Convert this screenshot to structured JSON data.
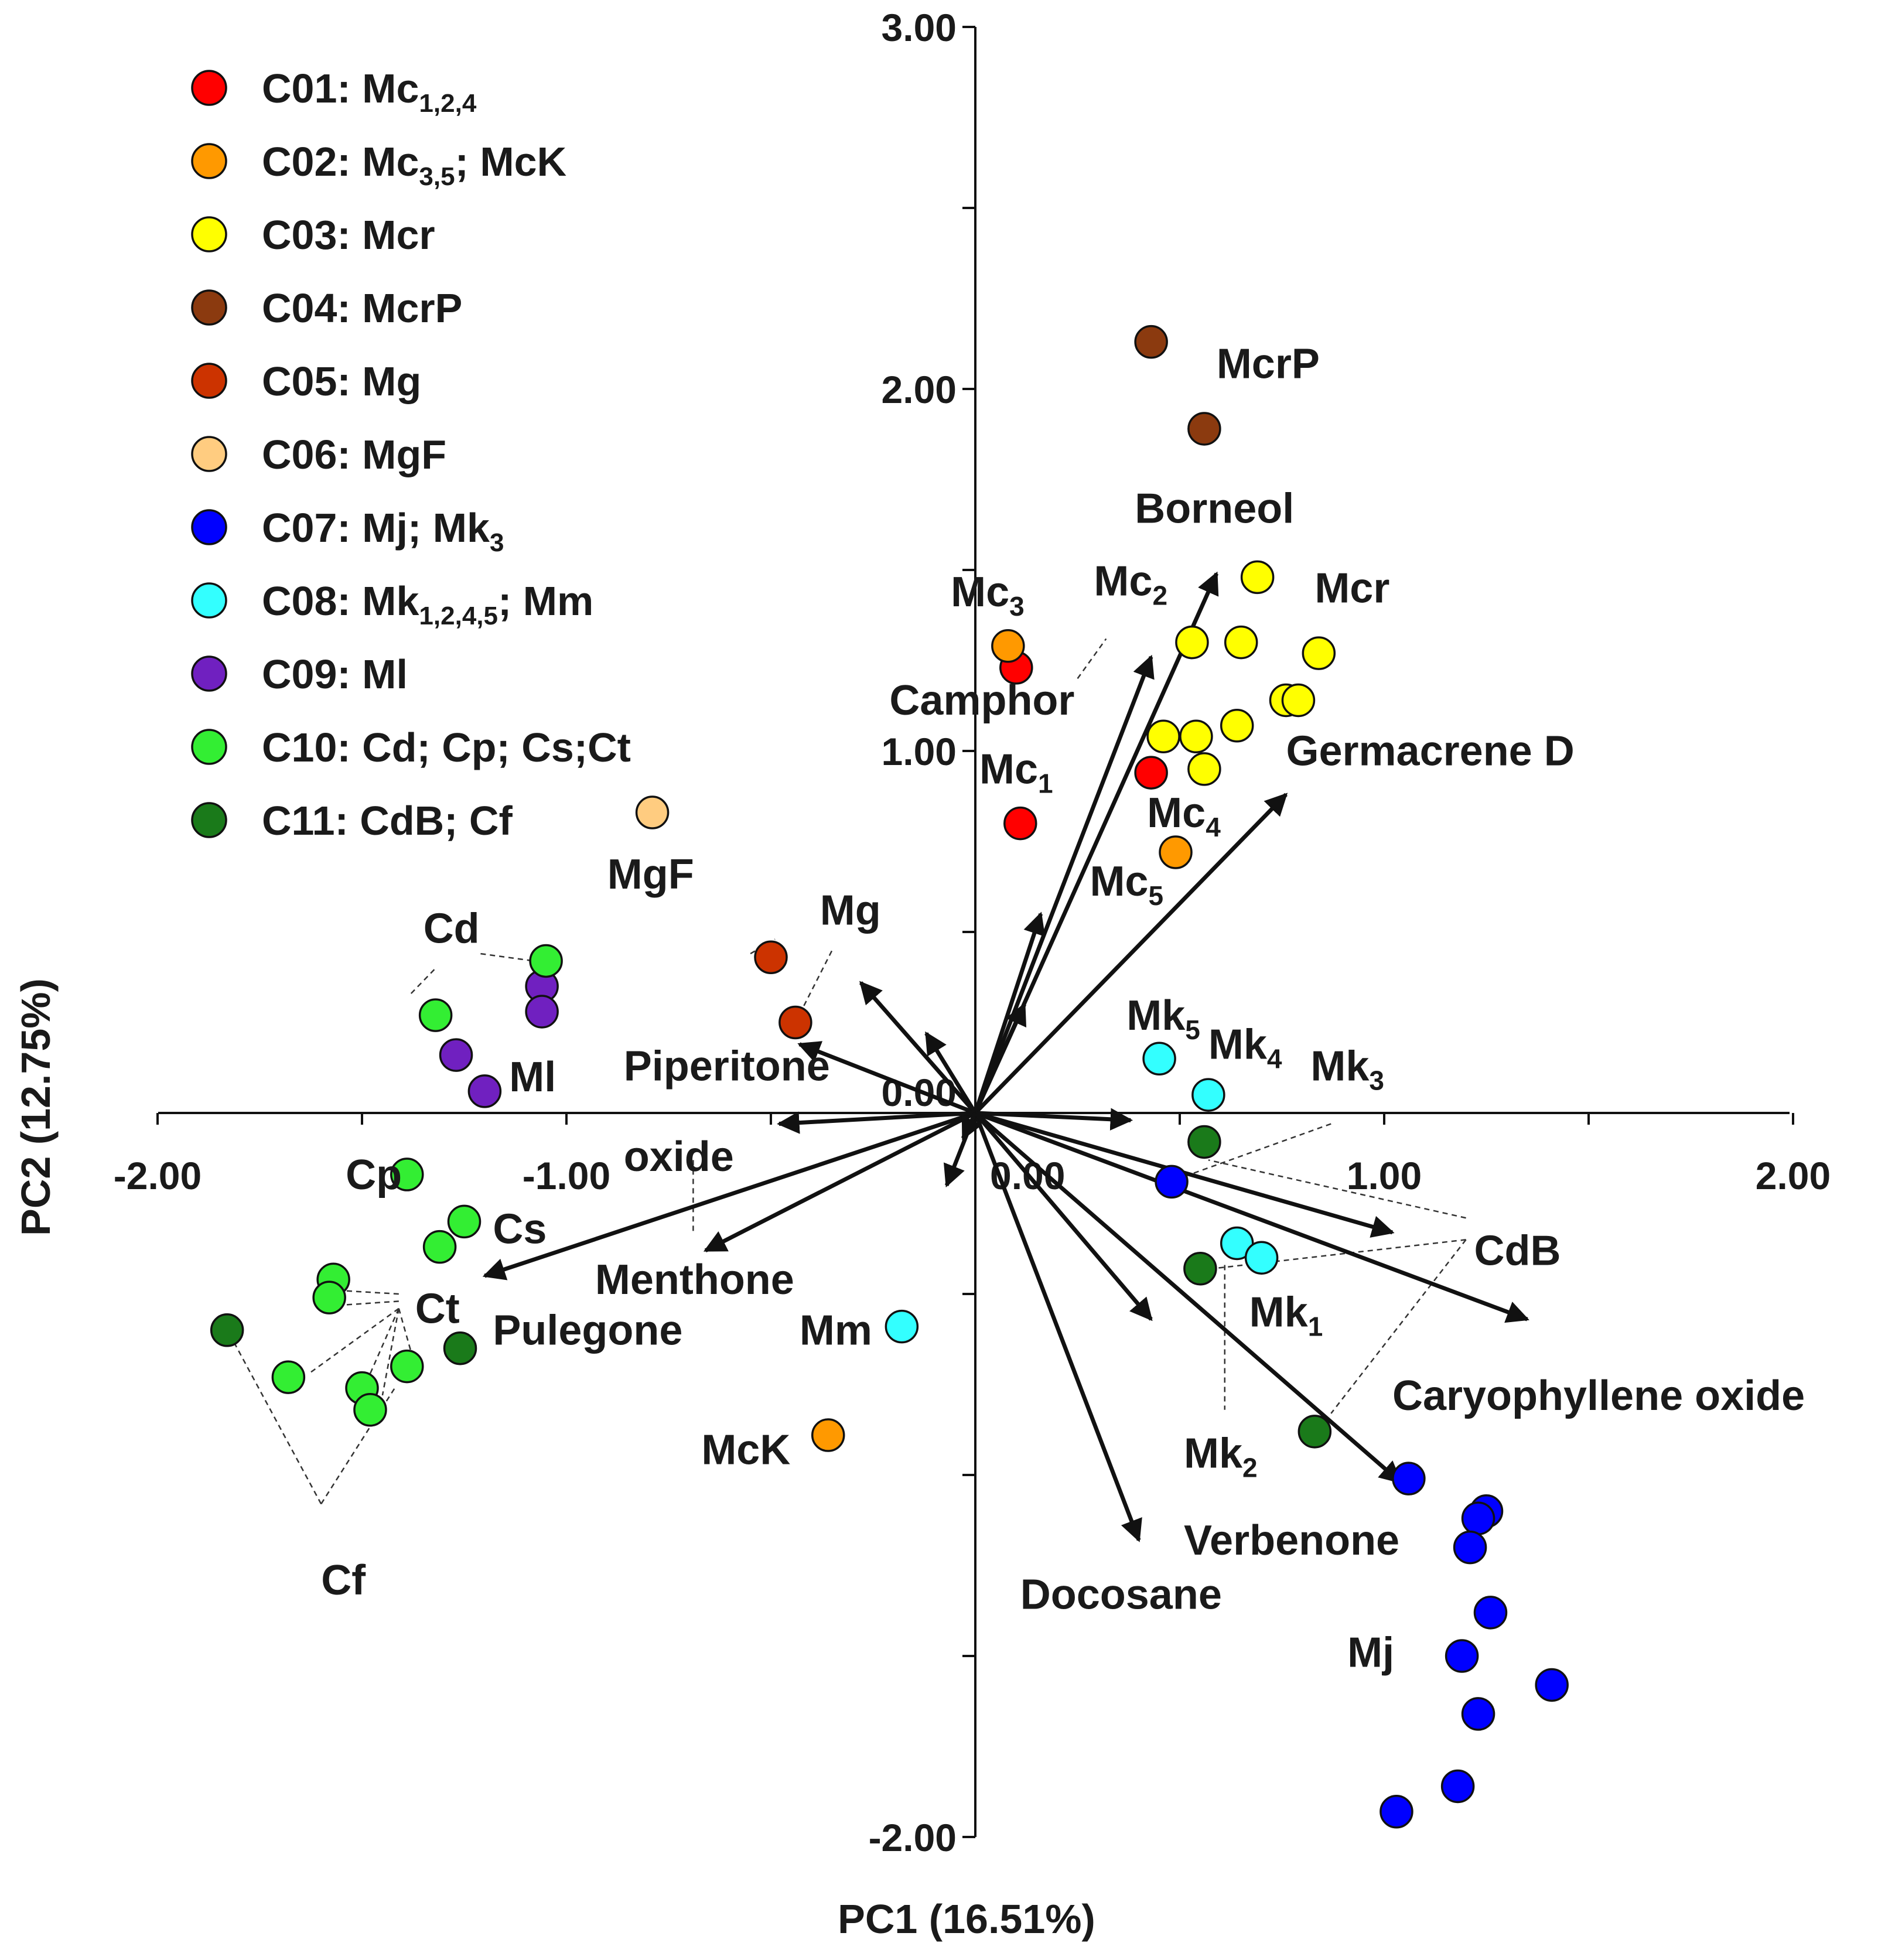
{
  "chart_data": {
    "type": "scatter",
    "subtype": "pca-biplot",
    "xlabel": "PC1 (16.51%)",
    "ylabel": "PC2 (12.75%)",
    "xlim": [
      -2.0,
      2.0
    ],
    "ylim": [
      -2.0,
      3.0
    ],
    "x_ticks": [
      "-2.00",
      "-1.00",
      "0.00",
      "1.00",
      "2.00"
    ],
    "y_ticks": [
      "-2.00",
      "0.00",
      "1.00",
      "2.00",
      "3.00"
    ],
    "grid": false,
    "legend_position": "top-left",
    "clusters": [
      {
        "id": "C01",
        "color": "#ff0000",
        "label": [
          [
            "C01: Mc",
            ""
          ],
          [
            "1,2,4",
            "sub"
          ]
        ],
        "points": [
          [
            0.1,
            1.23
          ],
          [
            0.43,
            0.94
          ],
          [
            0.11,
            0.8
          ]
        ]
      },
      {
        "id": "C02",
        "color": "#ff9900",
        "label": [
          [
            "C02: Mc",
            ""
          ],
          [
            "3,5",
            "sub"
          ],
          [
            "; McK",
            ""
          ]
        ],
        "points": [
          [
            0.08,
            1.29
          ],
          [
            0.49,
            0.72
          ],
          [
            -0.36,
            -0.89
          ]
        ]
      },
      {
        "id": "C03",
        "color": "#ffff00",
        "label": [
          [
            "C03: Mcr",
            ""
          ]
        ],
        "points": [
          [
            0.69,
            1.48
          ],
          [
            0.53,
            1.3
          ],
          [
            0.65,
            1.3
          ],
          [
            0.84,
            1.27
          ],
          [
            0.76,
            1.14
          ],
          [
            0.79,
            1.14
          ],
          [
            0.46,
            1.04
          ],
          [
            0.54,
            1.04
          ],
          [
            0.64,
            1.07
          ],
          [
            0.56,
            0.95
          ]
        ]
      },
      {
        "id": "C04",
        "color": "#8b3a0f",
        "label": [
          [
            "C04: McrP",
            ""
          ]
        ],
        "points": [
          [
            0.43,
            2.13
          ],
          [
            0.56,
            1.89
          ]
        ]
      },
      {
        "id": "C05",
        "color": "#cc3300",
        "label": [
          [
            "C05: Mg",
            ""
          ]
        ],
        "points": [
          [
            -0.5,
            0.43
          ],
          [
            -0.44,
            0.25
          ]
        ]
      },
      {
        "id": "C06",
        "color": "#ffcc80",
        "label": [
          [
            "C06: MgF",
            ""
          ]
        ],
        "points": [
          [
            -0.79,
            0.83
          ]
        ]
      },
      {
        "id": "C07",
        "color": "#0000ff",
        "label": [
          [
            "C07: Mj; Mk",
            ""
          ],
          [
            "3",
            "sub"
          ]
        ],
        "points": [
          [
            0.48,
            -0.19
          ],
          [
            1.06,
            -1.01
          ],
          [
            1.25,
            -1.1
          ],
          [
            1.23,
            -1.12
          ],
          [
            1.21,
            -1.2
          ],
          [
            1.26,
            -1.38
          ],
          [
            1.41,
            -1.58
          ],
          [
            1.19,
            -1.5
          ],
          [
            1.23,
            -1.66
          ],
          [
            1.18,
            -1.86
          ],
          [
            1.03,
            -1.93
          ]
        ]
      },
      {
        "id": "C08",
        "color": "#33ffff",
        "label": [
          [
            "C08: Mk",
            ""
          ],
          [
            "1,2,4,5",
            "sub"
          ],
          [
            "; Mm",
            ""
          ]
        ],
        "points": [
          [
            0.45,
            0.15
          ],
          [
            0.57,
            0.05
          ],
          [
            0.64,
            -0.36
          ],
          [
            0.7,
            -0.4
          ],
          [
            -0.18,
            -0.59
          ]
        ]
      },
      {
        "id": "C09",
        "color": "#7020c0",
        "label": [
          [
            "C09: Ml",
            ""
          ]
        ],
        "points": [
          [
            -1.06,
            0.35
          ],
          [
            -1.06,
            0.28
          ],
          [
            -1.27,
            0.16
          ],
          [
            -1.2,
            0.06
          ]
        ]
      },
      {
        "id": "C10",
        "color": "#33ee33",
        "label": [
          [
            "C10: Cd; Cp; Cs;Ct",
            ""
          ]
        ],
        "points": [
          [
            -1.05,
            0.42
          ],
          [
            -1.32,
            0.27
          ],
          [
            -1.39,
            -0.17
          ],
          [
            -1.25,
            -0.3
          ],
          [
            -1.31,
            -0.37
          ],
          [
            -1.57,
            -0.46
          ],
          [
            -1.58,
            -0.51
          ],
          [
            -1.39,
            -0.7
          ],
          [
            -1.68,
            -0.73
          ],
          [
            -1.5,
            -0.76
          ],
          [
            -1.48,
            -0.82
          ]
        ]
      },
      {
        "id": "C11",
        "color": "#1a7a1a",
        "label": [
          [
            "C11: CdB; Cf",
            ""
          ]
        ],
        "points": [
          [
            0.56,
            -0.08
          ],
          [
            0.55,
            -0.43
          ],
          [
            0.83,
            -0.88
          ],
          [
            -1.26,
            -0.65
          ],
          [
            -1.83,
            -0.6
          ]
        ]
      }
    ],
    "loadings": [
      {
        "name": "Borneol",
        "x": 0.59,
        "y": 1.49
      },
      {
        "name": "Camphor",
        "x": 0.43,
        "y": 1.26
      },
      {
        "name": "Germacrene D",
        "x": 0.76,
        "y": 0.88
      },
      {
        "name": "Piperitone oxide",
        "x": -0.43,
        "y": 0.19
      },
      {
        "name": "Menthone",
        "x": -0.66,
        "y": -0.38
      },
      {
        "name": "Pulegone",
        "x": -1.2,
        "y": -0.45
      },
      {
        "name": "CdB",
        "x": 1.02,
        "y": -0.33
      },
      {
        "name": "Caryophyllene oxide",
        "x": 1.35,
        "y": -0.57
      },
      {
        "name": "Verbenone",
        "x": 1.04,
        "y": -1.02
      },
      {
        "name": "Docosane",
        "x": 0.4,
        "y": -1.18
      },
      {
        "name": "",
        "x": 0.16,
        "y": 0.55
      },
      {
        "name": "",
        "x": 0.12,
        "y": 0.3
      },
      {
        "name": "",
        "x": -0.28,
        "y": 0.36
      },
      {
        "name": "",
        "x": -0.12,
        "y": 0.22
      },
      {
        "name": "",
        "x": -0.48,
        "y": -0.03
      },
      {
        "name": "",
        "x": 0.38,
        "y": -0.02
      },
      {
        "name": "",
        "x": 0.43,
        "y": -0.57
      },
      {
        "name": "",
        "x": -0.07,
        "y": -0.2
      },
      {
        "name": "",
        "x": -0.03,
        "y": -0.07
      }
    ],
    "point_labels": [
      {
        "text": [
          [
            "McrP",
            ""
          ]
        ],
        "x": 0.59,
        "y": 2.03
      },
      {
        "text": [
          [
            "Borneol",
            ""
          ]
        ],
        "x": 0.39,
        "y": 1.63
      },
      {
        "text": [
          [
            "Mc",
            ""
          ],
          [
            "2",
            "sub"
          ]
        ],
        "x": 0.29,
        "y": 1.43
      },
      {
        "text": [
          [
            "Mc",
            ""
          ],
          [
            "3",
            "sub"
          ]
        ],
        "x": -0.06,
        "y": 1.4
      },
      {
        "text": [
          [
            "Mcr",
            ""
          ]
        ],
        "x": 0.83,
        "y": 1.41
      },
      {
        "text": [
          [
            "Camphor",
            ""
          ]
        ],
        "x": -0.21,
        "y": 1.1
      },
      {
        "text": [
          [
            "Germacrene D",
            ""
          ]
        ],
        "x": 0.76,
        "y": 0.96
      },
      {
        "text": [
          [
            "Mc",
            ""
          ],
          [
            "1",
            "sub"
          ]
        ],
        "x": 0.01,
        "y": 0.91
      },
      {
        "text": [
          [
            "Mc",
            ""
          ],
          [
            "4",
            "sub"
          ]
        ],
        "x": 0.42,
        "y": 0.79
      },
      {
        "text": [
          [
            "Mc",
            ""
          ],
          [
            "5",
            "sub"
          ]
        ],
        "x": 0.28,
        "y": 0.6
      },
      {
        "text": [
          [
            "MgF",
            ""
          ]
        ],
        "x": -0.9,
        "y": 0.62
      },
      {
        "text": [
          [
            "Mg",
            ""
          ]
        ],
        "x": -0.38,
        "y": 0.52
      },
      {
        "text": [
          [
            "Cd",
            ""
          ]
        ],
        "x": -1.35,
        "y": 0.47
      },
      {
        "text": [
          [
            "Ml",
            ""
          ]
        ],
        "x": -1.14,
        "y": 0.06
      },
      {
        "text": [
          [
            "Piperitone",
            ""
          ]
        ],
        "x": -0.86,
        "y": 0.09
      },
      {
        "text": [
          [
            "oxide",
            ""
          ]
        ],
        "x": -0.86,
        "y": -0.16
      },
      {
        "text": [
          [
            "Mk",
            ""
          ],
          [
            "5",
            "sub"
          ]
        ],
        "x": 0.37,
        "y": 0.23
      },
      {
        "text": [
          [
            "Mk",
            ""
          ],
          [
            "4",
            "sub"
          ]
        ],
        "x": 0.57,
        "y": 0.15
      },
      {
        "text": [
          [
            "Mk",
            ""
          ],
          [
            "3",
            "sub"
          ]
        ],
        "x": 0.82,
        "y": 0.09
      },
      {
        "text": [
          [
            "Cp",
            ""
          ]
        ],
        "x": -1.54,
        "y": -0.21
      },
      {
        "text": [
          [
            "Cs",
            ""
          ]
        ],
        "x": -1.18,
        "y": -0.36
      },
      {
        "text": [
          [
            "Menthone",
            ""
          ]
        ],
        "x": -0.93,
        "y": -0.5
      },
      {
        "text": [
          [
            "Ct",
            ""
          ]
        ],
        "x": -1.37,
        "y": -0.58
      },
      {
        "text": [
          [
            "Pulegone",
            ""
          ]
        ],
        "x": -1.18,
        "y": -0.64
      },
      {
        "text": [
          [
            "CdB",
            ""
          ]
        ],
        "x": 1.22,
        "y": -0.42
      },
      {
        "text": [
          [
            "Mk",
            ""
          ],
          [
            "1",
            "sub"
          ]
        ],
        "x": 0.67,
        "y": -0.59
      },
      {
        "text": [
          [
            "Mm",
            ""
          ]
        ],
        "x": -0.43,
        "y": -0.64
      },
      {
        "text": [
          [
            "Caryophyllene oxide",
            ""
          ]
        ],
        "x": 1.02,
        "y": -0.82
      },
      {
        "text": [
          [
            "Mk",
            ""
          ],
          [
            "2",
            "sub"
          ]
        ],
        "x": 0.51,
        "y": -0.98
      },
      {
        "text": [
          [
            "McK",
            ""
          ]
        ],
        "x": -0.67,
        "y": -0.97
      },
      {
        "text": [
          [
            "Verbenone",
            ""
          ]
        ],
        "x": 0.51,
        "y": -1.22
      },
      {
        "text": [
          [
            "Cf",
            ""
          ]
        ],
        "x": -1.6,
        "y": -1.33
      },
      {
        "text": [
          [
            "Docosane",
            ""
          ]
        ],
        "x": 0.11,
        "y": -1.37
      },
      {
        "text": [
          [
            "Mj",
            ""
          ]
        ],
        "x": 0.91,
        "y": -1.53
      }
    ],
    "leader_lines": [
      [
        [
          0.25,
          1.2
        ],
        [
          0.32,
          1.31
        ]
      ],
      [
        [
          -1.38,
          0.33
        ],
        [
          -1.32,
          0.4
        ]
      ],
      [
        [
          -1.21,
          0.44
        ],
        [
          -1.08,
          0.42
        ]
      ],
      [
        [
          -0.55,
          0.44
        ],
        [
          -0.49,
          0.48
        ]
      ],
      [
        [
          -0.44,
          0.25
        ],
        [
          -0.35,
          0.45
        ]
      ],
      [
        [
          -1.41,
          -0.5
        ],
        [
          -1.56,
          -0.49
        ]
      ],
      [
        [
          -1.41,
          -0.52
        ],
        [
          -1.54,
          -0.53
        ]
      ],
      [
        [
          -1.41,
          -0.54
        ],
        [
          -1.63,
          -0.72
        ]
      ],
      [
        [
          -1.41,
          -0.54
        ],
        [
          -1.48,
          -0.72
        ]
      ],
      [
        [
          -1.41,
          -0.54
        ],
        [
          -1.45,
          -0.78
        ]
      ],
      [
        [
          -1.41,
          -0.54
        ],
        [
          -1.38,
          -0.66
        ]
      ],
      [
        [
          -1.6,
          -1.08
        ],
        [
          -1.81,
          -0.64
        ]
      ],
      [
        [
          -1.6,
          -1.08
        ],
        [
          -1.42,
          -0.76
        ]
      ],
      [
        [
          1.2,
          -0.29
        ],
        [
          0.57,
          -0.13
        ]
      ],
      [
        [
          1.2,
          -0.35
        ],
        [
          0.58,
          -0.43
        ]
      ],
      [
        [
          1.2,
          -0.35
        ],
        [
          0.87,
          -0.83
        ]
      ],
      [
        [
          0.87,
          -0.03
        ],
        [
          0.5,
          -0.18
        ]
      ],
      [
        [
          0.61,
          -0.42
        ],
        [
          0.61,
          -0.82
        ]
      ],
      [
        [
          -0.69,
          -0.13
        ],
        [
          -0.69,
          -0.33
        ]
      ]
    ]
  }
}
